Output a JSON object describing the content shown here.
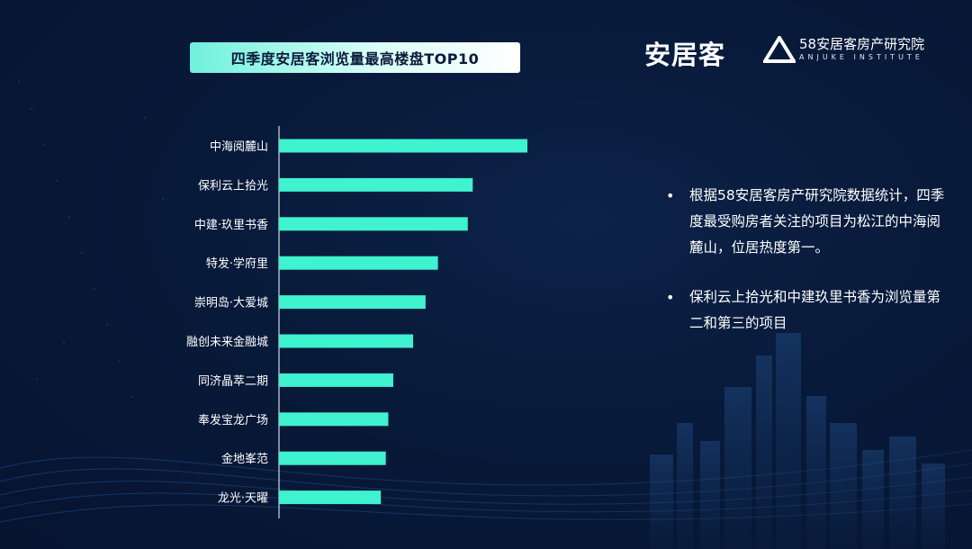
{
  "header": {
    "title": "四季度安居客浏览量最高楼盘TOP10",
    "brand": "安居客",
    "institute_cn": "58安居客房产研究院",
    "institute_en": "ANJUKE INSTITUTE"
  },
  "chart_data": {
    "type": "bar",
    "orientation": "horizontal",
    "title": "四季度安居客浏览量最高楼盘TOP10",
    "categories": [
      "中海阅麓山",
      "保利云上拾光",
      "中建·玖里书香",
      "特发·学府里",
      "崇明岛·大爱城",
      "融创未来金融城",
      "同济晶萃二期",
      "奉发宝龙广场",
      "金地峯范",
      "龙光·天曜"
    ],
    "values": [
      100,
      78,
      76,
      64,
      59,
      54,
      46,
      44,
      43,
      41
    ],
    "grid": false,
    "color": "#3ff2d0"
  },
  "notes": {
    "items": [
      "根据58安居客房产研究院数据统计，四季度最受购房者关注的项目为松江的中海阅麓山，位居热度第一。",
      "保利云上拾光和中建玖里书香为浏览量第二和第三的项目"
    ]
  },
  "colors": {
    "bar": "#3ff2d0",
    "background": "#081a3a",
    "title_box": "#6ff0dc"
  }
}
